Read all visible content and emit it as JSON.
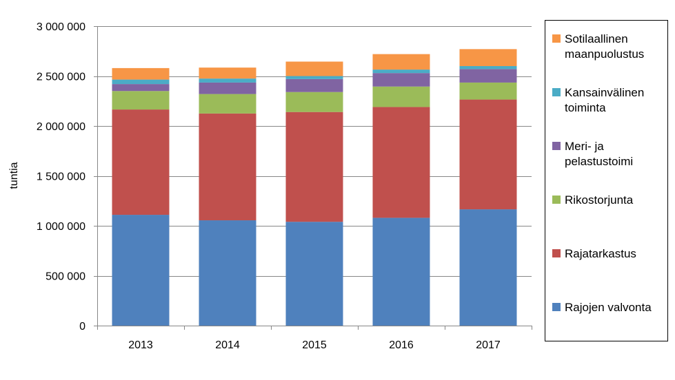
{
  "chart_data": {
    "type": "bar",
    "stacked": true,
    "categories": [
      "2013",
      "2014",
      "2015",
      "2016",
      "2017"
    ],
    "ylabel": "tuntia",
    "ylim": [
      0,
      3000000
    ],
    "yticks": [
      0,
      500000,
      1000000,
      1500000,
      2000000,
      2500000,
      3000000
    ],
    "ytick_labels": [
      "0",
      "500 000",
      "1 000 000",
      "1 500 000",
      "2 000 000",
      "2 500 000",
      "3 000 000"
    ],
    "grid": true,
    "legend_position": "right",
    "series": [
      {
        "name": "Rajojen valvonta",
        "color": "#4F81BD",
        "values": [
          1110000,
          1055000,
          1040000,
          1080000,
          1165000
        ]
      },
      {
        "name": "Rajatarkastus",
        "color": "#C0504D",
        "values": [
          1055000,
          1070000,
          1100000,
          1110000,
          1100000
        ]
      },
      {
        "name": "Rikostorjunta",
        "color": "#9BBB59",
        "values": [
          185000,
          195000,
          200000,
          205000,
          170000
        ]
      },
      {
        "name": "Meri- ja pelastustoimi",
        "color": "#8064A2",
        "values": [
          70000,
          115000,
          130000,
          135000,
          135000
        ]
      },
      {
        "name": "Kansainvälinen toiminta",
        "color": "#4BACC6",
        "values": [
          45000,
          40000,
          30000,
          35000,
          30000
        ]
      },
      {
        "name": "Sotilaallinen maanpuolustus",
        "color": "#F79646",
        "values": [
          115000,
          110000,
          145000,
          155000,
          170000
        ]
      }
    ]
  }
}
